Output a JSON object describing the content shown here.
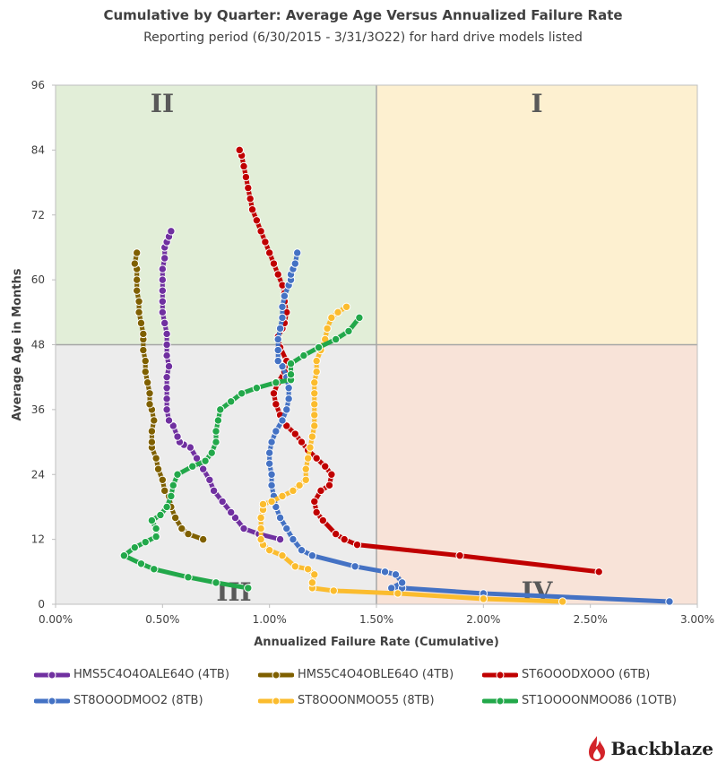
{
  "chart_data": {
    "type": "line",
    "title": "Cumulative by Quarter: Average Age Versus Annualized Failure Rate",
    "subtitle": "Reporting period (6/30/2015 - 3/31/3O22) for hard drive models listed",
    "xlabel": "Annualized Failure Rate (Cumulative)",
    "ylabel": "Average Age in Months",
    "xlim": [
      0,
      0.03
    ],
    "ylim": [
      0,
      96
    ],
    "x_ticks": [
      "0.00%",
      "0.50%",
      "1.00%",
      "1.50%",
      "2.00%",
      "2.50%",
      "3.00%"
    ],
    "y_ticks": [
      "0",
      "12",
      "24",
      "36",
      "48",
      "60",
      "72",
      "84",
      "96"
    ],
    "quadrants": [
      {
        "label": "I",
        "color": "#fdf0d0"
      },
      {
        "label": "II",
        "color": "#e2eed8"
      },
      {
        "label": "III",
        "color": "#ececec"
      },
      {
        "label": "IV",
        "color": "#f8e3d8"
      }
    ],
    "divider": {
      "x": 0.015,
      "y": 48
    },
    "series": [
      {
        "name": "HMS5C4O4OALE64O (4TB)",
        "color": "#7030a0",
        "points": [
          [
            0.0105,
            12
          ],
          [
            0.0095,
            13
          ],
          [
            0.0088,
            14
          ],
          [
            0.0084,
            16
          ],
          [
            0.0082,
            17
          ],
          [
            0.0078,
            19
          ],
          [
            0.0074,
            21
          ],
          [
            0.0072,
            23
          ],
          [
            0.0069,
            25
          ],
          [
            0.0066,
            27
          ],
          [
            0.0063,
            29
          ],
          [
            0.006,
            29.5
          ],
          [
            0.0058,
            30
          ],
          [
            0.0057,
            31
          ],
          [
            0.0055,
            33
          ],
          [
            0.0053,
            34
          ],
          [
            0.0052,
            36
          ],
          [
            0.0052,
            38
          ],
          [
            0.0052,
            40
          ],
          [
            0.0052,
            42
          ],
          [
            0.0053,
            44
          ],
          [
            0.0052,
            46
          ],
          [
            0.0052,
            48
          ],
          [
            0.0052,
            50
          ],
          [
            0.0051,
            52
          ],
          [
            0.005,
            54
          ],
          [
            0.005,
            56
          ],
          [
            0.005,
            58
          ],
          [
            0.005,
            60
          ],
          [
            0.005,
            62
          ],
          [
            0.0051,
            64
          ],
          [
            0.0051,
            66
          ],
          [
            0.0052,
            67
          ],
          [
            0.0053,
            68
          ],
          [
            0.0054,
            69
          ]
        ]
      },
      {
        "name": "HMS5C4O4OBLE64O (4TB)",
        "color": "#7f6000",
        "points": [
          [
            0.0069,
            12
          ],
          [
            0.0062,
            13
          ],
          [
            0.0059,
            14
          ],
          [
            0.0056,
            16
          ],
          [
            0.0054,
            18
          ],
          [
            0.0053,
            20
          ],
          [
            0.0051,
            21
          ],
          [
            0.005,
            23
          ],
          [
            0.0048,
            25
          ],
          [
            0.0047,
            27
          ],
          [
            0.0045,
            29
          ],
          [
            0.0045,
            30
          ],
          [
            0.0045,
            32
          ],
          [
            0.0046,
            34
          ],
          [
            0.0045,
            36
          ],
          [
            0.0044,
            37
          ],
          [
            0.0044,
            39
          ],
          [
            0.0043,
            41
          ],
          [
            0.0042,
            43
          ],
          [
            0.0042,
            45
          ],
          [
            0.0041,
            47
          ],
          [
            0.0041,
            49
          ],
          [
            0.0041,
            50
          ],
          [
            0.004,
            52
          ],
          [
            0.0039,
            54
          ],
          [
            0.0039,
            56
          ],
          [
            0.0038,
            58
          ],
          [
            0.0038,
            60
          ],
          [
            0.0038,
            62
          ],
          [
            0.0037,
            63
          ],
          [
            0.0038,
            65
          ]
        ]
      },
      {
        "name": "ST6OOODXOOO (6TB)",
        "color": "#c00000",
        "points": [
          [
            0.0254,
            6
          ],
          [
            0.0189,
            9
          ],
          [
            0.0141,
            11
          ],
          [
            0.0135,
            12
          ],
          [
            0.0131,
            13
          ],
          [
            0.0125,
            15.5
          ],
          [
            0.0122,
            17
          ],
          [
            0.0121,
            19
          ],
          [
            0.0124,
            21
          ],
          [
            0.0128,
            22
          ],
          [
            0.0129,
            24
          ],
          [
            0.0126,
            25.5
          ],
          [
            0.0122,
            27
          ],
          [
            0.0118,
            28.5
          ],
          [
            0.0115,
            30
          ],
          [
            0.0112,
            31.5
          ],
          [
            0.0108,
            33
          ],
          [
            0.0105,
            35
          ],
          [
            0.0103,
            37
          ],
          [
            0.0102,
            39
          ],
          [
            0.0104,
            41
          ],
          [
            0.0107,
            43
          ],
          [
            0.0108,
            45
          ],
          [
            0.0105,
            47.5
          ],
          [
            0.0104,
            49.5
          ],
          [
            0.0106,
            51
          ],
          [
            0.0107,
            52
          ],
          [
            0.0108,
            54
          ],
          [
            0.0107,
            56
          ],
          [
            0.0107,
            57.5
          ],
          [
            0.0106,
            59
          ],
          [
            0.0104,
            61
          ],
          [
            0.0102,
            63
          ],
          [
            0.01,
            65
          ],
          [
            0.0098,
            67
          ],
          [
            0.0096,
            69
          ],
          [
            0.0094,
            71
          ],
          [
            0.0092,
            73
          ],
          [
            0.0091,
            75
          ],
          [
            0.009,
            77
          ],
          [
            0.0089,
            79
          ],
          [
            0.0088,
            81
          ],
          [
            0.0087,
            83
          ],
          [
            0.0086,
            84
          ]
        ]
      },
      {
        "name": "ST8OOODMOO2 (8TB)",
        "color": "#4472c4",
        "points": [
          [
            0.0287,
            0.5
          ],
          [
            0.02,
            2
          ],
          [
            0.0162,
            3
          ],
          [
            0.0157,
            3
          ],
          [
            0.0162,
            4
          ],
          [
            0.0159,
            5.5
          ],
          [
            0.0154,
            6
          ],
          [
            0.014,
            7
          ],
          [
            0.012,
            9
          ],
          [
            0.0115,
            10
          ],
          [
            0.0111,
            12
          ],
          [
            0.0108,
            14
          ],
          [
            0.0105,
            16
          ],
          [
            0.0103,
            18
          ],
          [
            0.0102,
            20
          ],
          [
            0.0101,
            22
          ],
          [
            0.0101,
            24
          ],
          [
            0.01,
            26
          ],
          [
            0.01,
            28
          ],
          [
            0.0101,
            30
          ],
          [
            0.0103,
            32
          ],
          [
            0.0106,
            34
          ],
          [
            0.0108,
            36
          ],
          [
            0.0109,
            38
          ],
          [
            0.0109,
            40
          ],
          [
            0.0108,
            42
          ],
          [
            0.0106,
            44
          ],
          [
            0.0104,
            45
          ],
          [
            0.0104,
            47
          ],
          [
            0.0104,
            49
          ],
          [
            0.0105,
            51
          ],
          [
            0.0106,
            53
          ],
          [
            0.0106,
            55
          ],
          [
            0.0107,
            57
          ],
          [
            0.0109,
            59
          ],
          [
            0.011,
            60
          ],
          [
            0.011,
            61
          ],
          [
            0.0111,
            62
          ],
          [
            0.0112,
            63
          ],
          [
            0.0113,
            65
          ]
        ]
      },
      {
        "name": "ST8OOONMOO55 (8TB)",
        "color": "#fbbc2e",
        "points": [
          [
            0.0237,
            0.5
          ],
          [
            0.02,
            1
          ],
          [
            0.016,
            2
          ],
          [
            0.013,
            2.5
          ],
          [
            0.012,
            3
          ],
          [
            0.012,
            4
          ],
          [
            0.0121,
            5.5
          ],
          [
            0.0118,
            6.5
          ],
          [
            0.0112,
            7
          ],
          [
            0.0106,
            9
          ],
          [
            0.01,
            10
          ],
          [
            0.0097,
            11
          ],
          [
            0.0096,
            12
          ],
          [
            0.0096,
            14
          ],
          [
            0.0096,
            16
          ],
          [
            0.0097,
            17.5
          ],
          [
            0.0097,
            18.5
          ],
          [
            0.0101,
            19
          ],
          [
            0.0106,
            20
          ],
          [
            0.0111,
            21
          ],
          [
            0.0114,
            22
          ],
          [
            0.0117,
            23
          ],
          [
            0.0117,
            25
          ],
          [
            0.0118,
            27
          ],
          [
            0.0119,
            29
          ],
          [
            0.012,
            31
          ],
          [
            0.0121,
            33
          ],
          [
            0.0121,
            35
          ],
          [
            0.0121,
            37
          ],
          [
            0.0121,
            39
          ],
          [
            0.0121,
            41
          ],
          [
            0.0122,
            43
          ],
          [
            0.0122,
            45
          ],
          [
            0.0124,
            47
          ],
          [
            0.0126,
            49
          ],
          [
            0.0127,
            51
          ],
          [
            0.0129,
            53
          ],
          [
            0.0132,
            54
          ],
          [
            0.0136,
            55
          ]
        ]
      },
      {
        "name": "ST1OOOONMOO86 (1OTB)",
        "color": "#22a84a",
        "points": [
          [
            0.009,
            3
          ],
          [
            0.0075,
            4
          ],
          [
            0.0062,
            5
          ],
          [
            0.0046,
            6.5
          ],
          [
            0.004,
            7.5
          ],
          [
            0.0032,
            9
          ],
          [
            0.0037,
            10.5
          ],
          [
            0.0042,
            11.5
          ],
          [
            0.0047,
            12.5
          ],
          [
            0.0047,
            14
          ],
          [
            0.0045,
            15.5
          ],
          [
            0.0049,
            16.5
          ],
          [
            0.0052,
            18
          ],
          [
            0.0054,
            20
          ],
          [
            0.0055,
            22
          ],
          [
            0.0057,
            24
          ],
          [
            0.0064,
            25.5
          ],
          [
            0.007,
            26.5
          ],
          [
            0.0073,
            28
          ],
          [
            0.0075,
            30
          ],
          [
            0.0075,
            32
          ],
          [
            0.0076,
            34
          ],
          [
            0.0077,
            36
          ],
          [
            0.0082,
            37.5
          ],
          [
            0.0087,
            39
          ],
          [
            0.0094,
            40
          ],
          [
            0.0103,
            41
          ],
          [
            0.011,
            41.5
          ],
          [
            0.011,
            42.5
          ],
          [
            0.011,
            44.5
          ],
          [
            0.0116,
            46
          ],
          [
            0.0123,
            47.5
          ],
          [
            0.0131,
            49
          ],
          [
            0.0137,
            50.5
          ],
          [
            0.0142,
            53
          ]
        ]
      }
    ]
  },
  "logo": {
    "text": "Backblaze"
  }
}
